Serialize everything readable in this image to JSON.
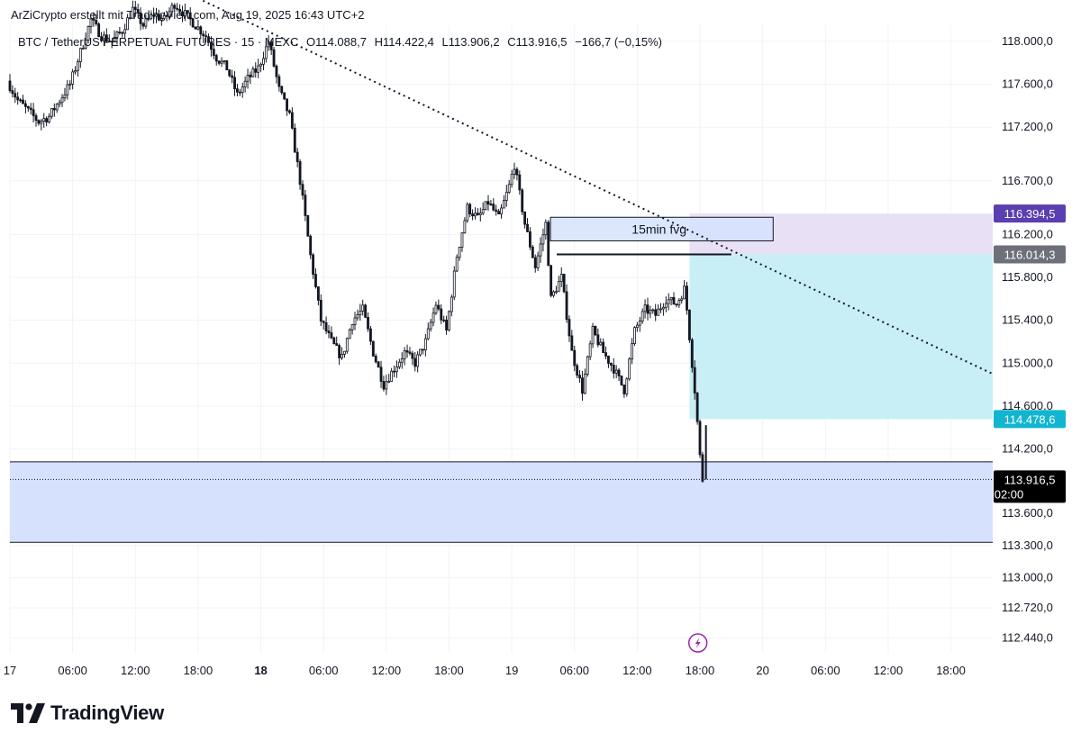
{
  "header": {
    "attribution": "ArZiCrypto erstellt mit TradingView.com, Aug 19, 2025 16:43 UTC+2",
    "symbol": "BTC / TetherUS PERPETUAL FUTURES · 15 · MEXC",
    "open": "O114.088,7",
    "high": "H114.422,4",
    "low": "L113.906,2",
    "close": "C113.916,5",
    "change": "−166,7 (−0,15%)"
  },
  "logo": {
    "text": "TradingView",
    "icon": "tradingview-logo-icon"
  },
  "colors": {
    "up": "#131722",
    "down": "#131722",
    "fvg_zone": "#d6e2fd",
    "lower_zone": "#d6e2fd",
    "target_zone": "#c8eff5",
    "stop_zone": "#e8e1f5",
    "tag_purple": "#5b3fb0",
    "tag_gray": "#6e7079",
    "tag_cyan": "#12b5cf",
    "tag_black": "#000000"
  },
  "chart_data": {
    "type": "candlestick",
    "y_axis": {
      "ticks": [
        "118.000,0",
        "117.600,0",
        "117.200,0",
        "116.700,0",
        "116.200,0",
        "115.800,0",
        "115.400,0",
        "115.000,0",
        "114.600,0",
        "114.200,0",
        "113.600,0",
        "113.300,0",
        "113.000,0",
        "112.720,0",
        "112.440,0"
      ],
      "tick_values": [
        118000,
        117600,
        117200,
        116700,
        116200,
        115800,
        115400,
        115000,
        114600,
        114200,
        113600,
        113300,
        113000,
        112720,
        112440
      ],
      "range": [
        112300,
        118150
      ]
    },
    "x_axis": {
      "ticks": [
        {
          "label": "17",
          "bold": false,
          "t": 0
        },
        {
          "label": "06:00",
          "bold": false,
          "t": 6
        },
        {
          "label": "12:00",
          "bold": false,
          "t": 12
        },
        {
          "label": "18:00",
          "bold": false,
          "t": 18
        },
        {
          "label": "18",
          "bold": true,
          "t": 24
        },
        {
          "label": "06:00",
          "bold": false,
          "t": 30
        },
        {
          "label": "12:00",
          "bold": false,
          "t": 36
        },
        {
          "label": "18:00",
          "bold": false,
          "t": 42
        },
        {
          "label": "19",
          "bold": false,
          "t": 48
        },
        {
          "label": "06:00",
          "bold": false,
          "t": 54
        },
        {
          "label": "12:00",
          "bold": false,
          "t": 60
        },
        {
          "label": "18:00",
          "bold": false,
          "t": 66
        },
        {
          "label": "20",
          "bold": false,
          "t": 72
        },
        {
          "label": "06:00",
          "bold": false,
          "t": 78
        },
        {
          "label": "12:00",
          "bold": false,
          "t": 84
        },
        {
          "label": "18:00",
          "bold": false,
          "t": 90
        }
      ],
      "range_hours": [
        0,
        94
      ]
    },
    "price_path": [
      [
        0.0,
        117630
      ],
      [
        1.0,
        117450
      ],
      [
        2.0,
        117350
      ],
      [
        3.0,
        117250
      ],
      [
        4.0,
        117300
      ],
      [
        5.0,
        117450
      ],
      [
        6.0,
        117600
      ],
      [
        7.0,
        117900
      ],
      [
        8.0,
        118200
      ],
      [
        9.0,
        118050
      ],
      [
        10.0,
        118000
      ],
      [
        11.0,
        118100
      ],
      [
        12.0,
        118300
      ],
      [
        13.0,
        118150
      ],
      [
        14.0,
        118250
      ],
      [
        15.0,
        118200
      ],
      [
        16.0,
        118350
      ],
      [
        17.0,
        118250
      ],
      [
        18.0,
        118150
      ],
      [
        19.0,
        118050
      ],
      [
        20.0,
        117850
      ],
      [
        21.0,
        117750
      ],
      [
        22.0,
        117500
      ],
      [
        23.0,
        117650
      ],
      [
        24.0,
        117750
      ],
      [
        25.0,
        118000
      ],
      [
        26.0,
        117550
      ],
      [
        27.0,
        117300
      ],
      [
        28.0,
        116700
      ],
      [
        29.0,
        116000
      ],
      [
        30.0,
        115400
      ],
      [
        31.0,
        115200
      ],
      [
        32.0,
        115050
      ],
      [
        33.0,
        115400
      ],
      [
        34.0,
        115500
      ],
      [
        35.0,
        115100
      ],
      [
        36.0,
        114800
      ],
      [
        37.0,
        114950
      ],
      [
        38.0,
        115100
      ],
      [
        39.0,
        115000
      ],
      [
        40.0,
        115200
      ],
      [
        41.0,
        115550
      ],
      [
        42.0,
        115300
      ],
      [
        43.0,
        116000
      ],
      [
        44.0,
        116450
      ],
      [
        45.0,
        116350
      ],
      [
        46.0,
        116500
      ],
      [
        47.0,
        116350
      ],
      [
        48.0,
        116650
      ],
      [
        48.5,
        116850
      ],
      [
        49.5,
        116300
      ],
      [
        50.5,
        115900
      ],
      [
        51.5,
        116300
      ],
      [
        52.0,
        115600
      ],
      [
        53.0,
        115800
      ],
      [
        54.0,
        115100
      ],
      [
        55.0,
        114750
      ],
      [
        56.0,
        115300
      ],
      [
        57.0,
        115100
      ],
      [
        58.0,
        114950
      ],
      [
        59.0,
        114750
      ],
      [
        60.0,
        115300
      ],
      [
        61.0,
        115500
      ],
      [
        62.0,
        115450
      ],
      [
        63.0,
        115600
      ],
      [
        64.0,
        115550
      ],
      [
        64.8,
        115700
      ],
      [
        65.3,
        115200
      ],
      [
        65.8,
        114700
      ],
      [
        66.2,
        114200
      ],
      [
        66.4,
        113917
      ]
    ],
    "candle_step_hours": 0.25,
    "levels": {
      "fvg_top": 116360,
      "fvg_bottom": 116140,
      "fvg_start_h": 51.7,
      "fvg_end_h": 73.0,
      "fvg_label": "15min fvg",
      "line_level": 116014.3,
      "line_start_h": 52.3,
      "line_end_h": 69.0,
      "position_start_h": 65.0,
      "position_end_h": 94.0,
      "stop": 116394.5,
      "entry": 116014.3,
      "target": 114478.6,
      "zone_top": 114080,
      "zone_bottom": 113330,
      "last_price": 113916.5
    },
    "trendline": {
      "from": [
        18.0,
        118400
      ],
      "to": [
        94.0,
        114900
      ]
    },
    "price_tags": [
      {
        "value": "116.394,5",
        "y": 116394.5,
        "color": "#5b3fb0"
      },
      {
        "value": "116.014,3",
        "y": 116014.3,
        "color": "#6e7079"
      },
      {
        "value": "114.478,6",
        "y": 114478.6,
        "color": "#12b5cf"
      }
    ],
    "last_price_tag": {
      "value": "113.916,5",
      "countdown": "02:00",
      "y": 113916.5
    },
    "event_marker_h": 65.8,
    "event_icon": "lightning-icon"
  }
}
